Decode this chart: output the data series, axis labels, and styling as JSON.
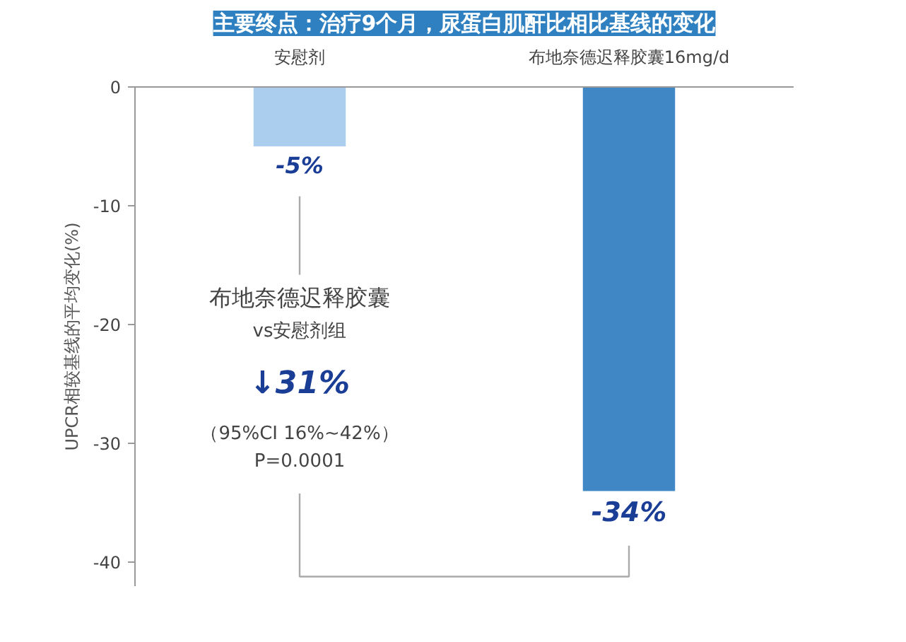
{
  "chart_data": {
    "type": "bar",
    "title": "主要终点：治疗9个月，尿蛋白肌酐比相比基线的变化",
    "ylabel": "UPCR相较基线的平均变化(%)",
    "categories": [
      "安慰剂",
      "布地奈德迟释胶囊16mg/d"
    ],
    "values": [
      -5,
      -34
    ],
    "colors": [
      "#abcdee",
      "#3f88c5"
    ],
    "value_labels": [
      "-5%",
      "-34%"
    ],
    "ylim": [
      -42,
      0
    ],
    "yticks": [
      0,
      -10,
      -20,
      -30,
      -40
    ],
    "grid": false,
    "annotations": [
      "布地奈德迟释胶囊",
      "vs安慰剂组",
      "↓31%",
      "（95%CI 16%~42%）",
      "P=0.0001"
    ]
  }
}
